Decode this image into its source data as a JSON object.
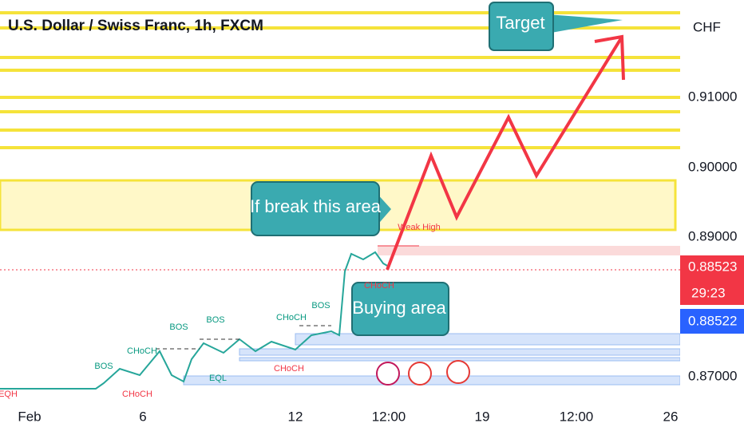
{
  "header": {
    "title": "U.S. Dollar / Swiss Franc, 1h, FXCM",
    "currency": "CHF"
  },
  "price_axis": {
    "labels": [
      "0.91000",
      "0.90000",
      "0.89000",
      "0.87000"
    ],
    "last_price": "0.88523",
    "countdown": "29:23",
    "bid_price": "0.88522"
  },
  "time_axis": {
    "labels": [
      "Feb",
      "6",
      "12",
      "12:00",
      "19",
      "12:00",
      "26"
    ]
  },
  "callouts": [
    "Target",
    "If break this area",
    "Buying area"
  ],
  "annotations": [
    "BOS",
    "CHoCH",
    "BOS",
    "BOS",
    "CHoCH",
    "BOS",
    "CHoCH",
    "EQL",
    "CHoCH",
    "Weak High",
    "EQH",
    "CHoCH"
  ]
}
